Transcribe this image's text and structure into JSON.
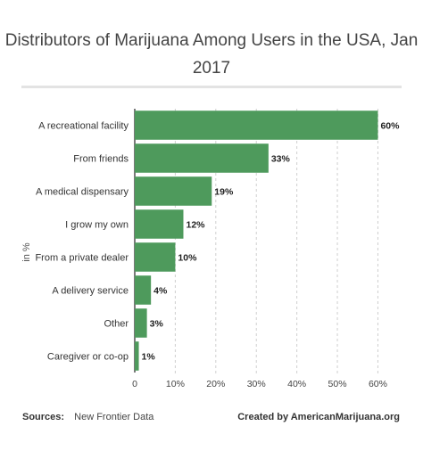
{
  "title": "Distributors of Marijuana Among Users in the USA, Jan 2017",
  "footer": {
    "sources_label": "Sources:",
    "sources_value": "New Frontier Data",
    "credit": "Created by AmericanMarijuana.org"
  },
  "chart_data": {
    "type": "bar",
    "orientation": "horizontal",
    "title": "Distributors of Marijuana Among Users in the USA, Jan 2017",
    "ylabel": "in %",
    "categories": [
      "A recreational facility",
      "From friends",
      "A medical dispensary",
      "I grow my own",
      "From a private dealer",
      "A delivery service",
      "Other",
      "Caregiver or co-op"
    ],
    "values": [
      60,
      33,
      19,
      12,
      10,
      4,
      3,
      1
    ],
    "value_labels": [
      "60%",
      "33%",
      "19%",
      "12%",
      "10%",
      "4%",
      "3%",
      "1%"
    ],
    "xticks": [
      "0",
      "10%",
      "20%",
      "30%",
      "40%",
      "50%",
      "60%"
    ],
    "xtick_values": [
      0,
      10,
      20,
      30,
      40,
      50,
      60
    ],
    "xlim": [
      0,
      61
    ],
    "grid": "vertical dashed",
    "bar_color": "#4e9a5c"
  }
}
